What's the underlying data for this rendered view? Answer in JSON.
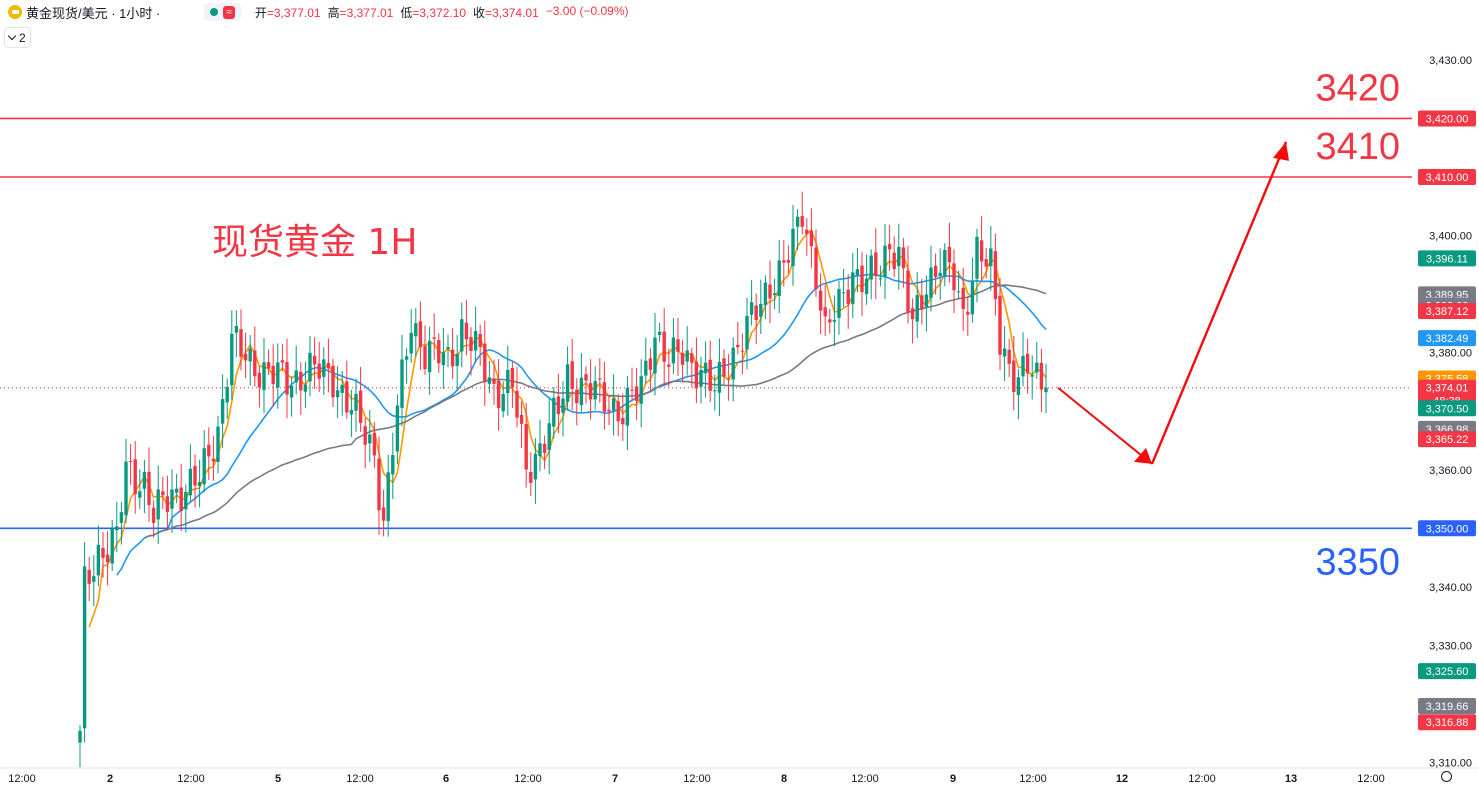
{
  "header": {
    "title": "黄金现货/美元 · 1小时 ·",
    "approx_label": "≈",
    "ohlc": [
      {
        "label": "开",
        "value": "=3,377.01"
      },
      {
        "label": "高",
        "value": "=3,377.01"
      },
      {
        "label": "低",
        "value": "=3,372.10"
      },
      {
        "label": "收",
        "value": "=3,374.01"
      }
    ],
    "change": "−3.00 (−0.09%)"
  },
  "indicator_count": "2",
  "colors": {
    "up": "#089981",
    "down": "#f23645",
    "ma_fast": "#ff9800",
    "ma_mid": "#2196f3",
    "ma_slow": "#787b86",
    "resistance": "#f23645",
    "support": "#2962ff",
    "arrow": "#f20d0d"
  },
  "chart_data": {
    "type": "candlestick",
    "title": "现货黄金 1H",
    "ylim": [
      3310,
      3430
    ],
    "y_ticks": [
      "3,310.00",
      "3,320.00",
      "3,330.00",
      "3,340.00",
      "3,350.00",
      "3,360.00",
      "3,370.00",
      "3,380.00",
      "3,390.00",
      "3,400.00",
      "3,410.00",
      "3,420.00",
      "3,430.00"
    ],
    "x_ticks": [
      "12:00",
      "2",
      "12:00",
      "5",
      "12:00",
      "6",
      "12:00",
      "7",
      "12:00",
      "8",
      "12:00",
      "9",
      "12:00",
      "12",
      "12:00",
      "13",
      "12:00"
    ],
    "levels": [
      {
        "value": 3420,
        "label": "3420",
        "price_label": "3,420.00",
        "kind": "resistance"
      },
      {
        "value": 3410,
        "label": "3410",
        "price_label": "3,410.00",
        "kind": "resistance"
      },
      {
        "value": 3350,
        "label": "3350",
        "price_label": "3,350.00",
        "kind": "support"
      }
    ],
    "price_labels": [
      {
        "text": "3,396.11",
        "value": 3396.11,
        "color": "#089981"
      },
      {
        "text": "3,389.95",
        "value": 3389.95,
        "color": "#787b86"
      },
      {
        "text": "3,388.02",
        "value": 3388.02,
        "color": "#787b86"
      },
      {
        "text": "3,387.12",
        "value": 3387.12,
        "color": "#f23645"
      },
      {
        "text": "3,382.49",
        "value": 3382.49,
        "color": "#2196f3"
      },
      {
        "text": "3,375.58",
        "value": 3375.58,
        "color": "#ff9800"
      },
      {
        "text": "3,374.01",
        "value": 3374.01,
        "color": "#f23645",
        "sub": "48:38"
      },
      {
        "text": "3,370.50",
        "value": 3370.5,
        "color": "#089981"
      },
      {
        "text": "3,366.98",
        "value": 3366.98,
        "color": "#787b86"
      },
      {
        "text": "3,365.22",
        "value": 3365.22,
        "color": "#f23645"
      },
      {
        "text": "3,325.60",
        "value": 3325.6,
        "color": "#089981"
      },
      {
        "text": "3,319.66",
        "value": 3319.66,
        "color": "#787b86"
      },
      {
        "text": "3,316.88",
        "value": 3316.88,
        "color": "#f23645"
      }
    ],
    "current_price": 3374.01,
    "anchors": [
      [
        0,
        3314
      ],
      [
        1,
        3340
      ],
      [
        4,
        3346
      ],
      [
        8,
        3348
      ],
      [
        10,
        3360
      ],
      [
        14,
        3358
      ],
      [
        16,
        3352
      ],
      [
        20,
        3356
      ],
      [
        26,
        3358
      ],
      [
        30,
        3367
      ],
      [
        33,
        3382
      ],
      [
        36,
        3379
      ],
      [
        40,
        3377
      ],
      [
        45,
        3375
      ],
      [
        50,
        3377
      ],
      [
        55,
        3376
      ],
      [
        60,
        3369
      ],
      [
        64,
        3363
      ],
      [
        66,
        3351
      ],
      [
        69,
        3370
      ],
      [
        72,
        3386
      ],
      [
        75,
        3380
      ],
      [
        80,
        3379
      ],
      [
        83,
        3384
      ],
      [
        87,
        3379
      ],
      [
        90,
        3374
      ],
      [
        94,
        3374
      ],
      [
        97,
        3360
      ],
      [
        100,
        3364
      ],
      [
        104,
        3370
      ],
      [
        106,
        3376
      ],
      [
        110,
        3374
      ],
      [
        114,
        3372
      ],
      [
        118,
        3370
      ],
      [
        122,
        3374
      ],
      [
        125,
        3384
      ],
      [
        128,
        3378
      ],
      [
        131,
        3380
      ],
      [
        135,
        3377
      ],
      [
        138,
        3373
      ],
      [
        140,
        3377
      ],
      [
        144,
        3383
      ],
      [
        148,
        3388
      ],
      [
        150,
        3392
      ],
      [
        152,
        3394
      ],
      [
        155,
        3398
      ],
      [
        157,
        3404
      ],
      [
        160,
        3394
      ],
      [
        162,
        3383
      ],
      [
        165,
        3388
      ],
      [
        168,
        3394
      ],
      [
        171,
        3392
      ],
      [
        174,
        3394
      ],
      [
        176,
        3399
      ],
      [
        178,
        3397
      ],
      [
        181,
        3384
      ],
      [
        184,
        3392
      ],
      [
        187,
        3396
      ],
      [
        190,
        3392
      ],
      [
        192,
        3386
      ],
      [
        195,
        3398
      ],
      [
        198,
        3394
      ],
      [
        200,
        3382
      ],
      [
        202,
        3378
      ],
      [
        204,
        3376
      ],
      [
        206,
        3377
      ],
      [
        208,
        3375
      ],
      [
        210,
        3374
      ]
    ],
    "indicators": [
      {
        "name": "MA fast",
        "period": 5,
        "color": "#ff9800"
      },
      {
        "name": "MA mid",
        "period": 20,
        "color": "#2196f3"
      },
      {
        "name": "MA slow",
        "period": 60,
        "color": "#787b86"
      }
    ],
    "forecast": [
      [
        3374,
        "now"
      ],
      [
        3361,
        "dip"
      ],
      [
        3416,
        "target"
      ]
    ]
  }
}
